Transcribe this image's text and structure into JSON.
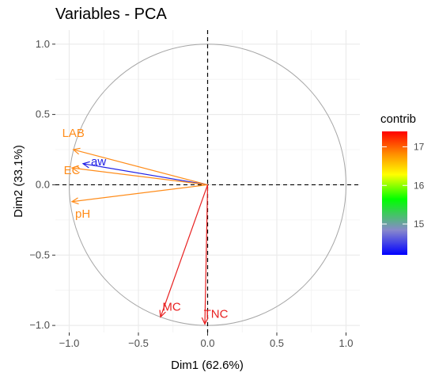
{
  "chart_data": {
    "type": "scatter",
    "subtype": "pca-correlation-circle",
    "title": "Variables - PCA",
    "xlabel": "Dim1 (62.6%)",
    "ylabel": "Dim2 (33.1%)",
    "xlim": [
      -1.1,
      1.1
    ],
    "ylim": [
      -1.05,
      1.1
    ],
    "x_ticks": [
      -1.0,
      -0.5,
      0.0,
      0.5,
      1.0
    ],
    "x_tick_labels": [
      "−1.0",
      "−0.5",
      "0.0",
      "0.5",
      "1.0"
    ],
    "y_ticks": [
      -1.0,
      -0.5,
      0.0,
      0.5,
      1.0
    ],
    "y_tick_labels": [
      "−1.0",
      "−0.5",
      "0.0",
      "0.5",
      "1.0"
    ],
    "grid": true,
    "reference_lines": {
      "x": 0,
      "y": 0,
      "style": "dashed"
    },
    "unit_circle": true,
    "variables": [
      {
        "name": "LAB",
        "x": -0.97,
        "y": 0.25,
        "contrib": 17.0,
        "color": "#ff8c1a"
      },
      {
        "name": "aw",
        "x": -0.9,
        "y": 0.15,
        "contrib": 14.4,
        "color": "#1f1fe6"
      },
      {
        "name": "EC",
        "x": -0.98,
        "y": 0.12,
        "contrib": 17.0,
        "color": "#ff8c1a"
      },
      {
        "name": "pH",
        "x": -0.98,
        "y": -0.12,
        "contrib": 17.0,
        "color": "#ff8c1a"
      },
      {
        "name": "MC",
        "x": -0.34,
        "y": -0.94,
        "contrib": 17.4,
        "color": "#e82020"
      },
      {
        "name": "TNC",
        "x": -0.02,
        "y": -0.99,
        "contrib": 17.4,
        "color": "#e82020"
      }
    ],
    "legend": {
      "title": "contrib",
      "placement": "right",
      "min": 14.2,
      "max": 17.4,
      "ticks": [
        15,
        16,
        17
      ],
      "tick_labels": [
        "15",
        "16",
        "17"
      ],
      "colors": [
        "#0000ff",
        "#8888cc",
        "#00ff00",
        "#ffff00",
        "#ff8c00",
        "#ff0000"
      ]
    }
  }
}
